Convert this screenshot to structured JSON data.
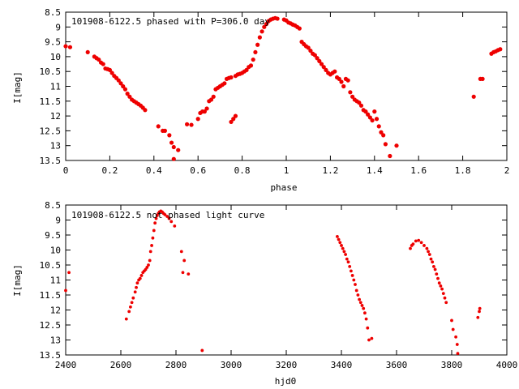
{
  "chart_data": [
    {
      "type": "scatter",
      "title": "101908-6122.5 phased with P=306.0 day",
      "xlabel": "phase",
      "ylabel": "I[mag]",
      "xlim": [
        0,
        2
      ],
      "ylim": [
        13.5,
        8.5
      ],
      "y_inverted": true,
      "xticks": [
        0,
        0.2,
        0.4,
        0.6,
        0.8,
        1,
        1.2,
        1.4,
        1.6,
        1.8,
        2
      ],
      "xtick_labels": [
        "0",
        "0.2",
        "0.4",
        "0.6",
        "0.8",
        "1",
        "1.2",
        "1.4",
        "1.6",
        "1.8",
        "2"
      ],
      "yticks": [
        8.5,
        9,
        9.5,
        10,
        10.5,
        11,
        11.5,
        12,
        12.5,
        13,
        13.5
      ],
      "ytick_labels": [
        "8.5",
        "9",
        "9.5",
        "10",
        "10.5",
        "11",
        "11.5",
        "12",
        "12.5",
        "13",
        "13.5"
      ],
      "grid": false,
      "marker_color": "#ee0000",
      "points": [
        [
          0.0,
          9.65
        ],
        [
          0.02,
          9.68
        ],
        [
          0.1,
          9.85
        ],
        [
          0.13,
          10.0
        ],
        [
          0.14,
          10.05
        ],
        [
          0.15,
          10.1
        ],
        [
          0.16,
          10.2
        ],
        [
          0.17,
          10.25
        ],
        [
          0.18,
          10.4
        ],
        [
          0.19,
          10.42
        ],
        [
          0.2,
          10.45
        ],
        [
          0.21,
          10.55
        ],
        [
          0.22,
          10.65
        ],
        [
          0.23,
          10.72
        ],
        [
          0.24,
          10.8
        ],
        [
          0.25,
          10.9
        ],
        [
          0.26,
          11.0
        ],
        [
          0.27,
          11.1
        ],
        [
          0.28,
          11.25
        ],
        [
          0.29,
          11.35
        ],
        [
          0.3,
          11.45
        ],
        [
          0.31,
          11.5
        ],
        [
          0.32,
          11.55
        ],
        [
          0.33,
          11.6
        ],
        [
          0.34,
          11.65
        ],
        [
          0.35,
          11.72
        ],
        [
          0.36,
          11.8
        ],
        [
          0.42,
          12.35
        ],
        [
          0.44,
          12.5
        ],
        [
          0.45,
          12.5
        ],
        [
          0.47,
          12.65
        ],
        [
          0.48,
          12.9
        ],
        [
          0.49,
          13.05
        ],
        [
          0.49,
          13.45
        ],
        [
          0.51,
          13.15
        ],
        [
          0.55,
          12.28
        ],
        [
          0.57,
          12.3
        ],
        [
          0.6,
          12.1
        ],
        [
          0.61,
          11.9
        ],
        [
          0.62,
          11.85
        ],
        [
          0.63,
          11.85
        ],
        [
          0.64,
          11.75
        ],
        [
          0.65,
          11.5
        ],
        [
          0.66,
          11.45
        ],
        [
          0.67,
          11.35
        ],
        [
          0.68,
          11.1
        ],
        [
          0.69,
          11.05
        ],
        [
          0.7,
          11.0
        ],
        [
          0.71,
          10.95
        ],
        [
          0.72,
          10.9
        ],
        [
          0.73,
          10.75
        ],
        [
          0.74,
          10.72
        ],
        [
          0.75,
          10.7
        ],
        [
          0.75,
          12.2
        ],
        [
          0.76,
          12.1
        ],
        [
          0.77,
          12.0
        ],
        [
          0.77,
          10.65
        ],
        [
          0.78,
          10.6
        ],
        [
          0.79,
          10.58
        ],
        [
          0.8,
          10.55
        ],
        [
          0.81,
          10.5
        ],
        [
          0.82,
          10.45
        ],
        [
          0.83,
          10.35
        ],
        [
          0.84,
          10.3
        ],
        [
          0.85,
          10.1
        ],
        [
          0.86,
          9.85
        ],
        [
          0.87,
          9.6
        ],
        [
          0.88,
          9.35
        ],
        [
          0.89,
          9.15
        ],
        [
          0.9,
          9.0
        ],
        [
          0.91,
          8.9
        ],
        [
          0.92,
          8.8
        ],
        [
          0.93,
          8.75
        ],
        [
          0.94,
          8.72
        ],
        [
          0.95,
          8.7
        ],
        [
          0.96,
          8.72
        ],
        [
          0.99,
          8.75
        ],
        [
          1.0,
          8.78
        ],
        [
          1.01,
          8.85
        ],
        [
          1.02,
          8.88
        ],
        [
          1.03,
          8.92
        ],
        [
          1.04,
          8.95
        ],
        [
          1.05,
          9.0
        ],
        [
          1.06,
          9.05
        ],
        [
          1.07,
          9.5
        ],
        [
          1.08,
          9.58
        ],
        [
          1.09,
          9.65
        ],
        [
          1.1,
          9.7
        ],
        [
          1.11,
          9.8
        ],
        [
          1.12,
          9.9
        ],
        [
          1.13,
          9.95
        ],
        [
          1.14,
          10.05
        ],
        [
          1.15,
          10.15
        ],
        [
          1.16,
          10.25
        ],
        [
          1.17,
          10.35
        ],
        [
          1.18,
          10.45
        ],
        [
          1.19,
          10.55
        ],
        [
          1.2,
          10.6
        ],
        [
          1.21,
          10.55
        ],
        [
          1.22,
          10.5
        ],
        [
          1.23,
          10.7
        ],
        [
          1.24,
          10.75
        ],
        [
          1.25,
          10.85
        ],
        [
          1.26,
          11.0
        ],
        [
          1.27,
          10.75
        ],
        [
          1.28,
          10.8
        ],
        [
          1.29,
          11.2
        ],
        [
          1.3,
          11.35
        ],
        [
          1.31,
          11.45
        ],
        [
          1.32,
          11.5
        ],
        [
          1.33,
          11.55
        ],
        [
          1.34,
          11.65
        ],
        [
          1.35,
          11.8
        ],
        [
          1.36,
          11.85
        ],
        [
          1.37,
          11.95
        ],
        [
          1.38,
          12.05
        ],
        [
          1.39,
          12.15
        ],
        [
          1.4,
          11.85
        ],
        [
          1.41,
          12.1
        ],
        [
          1.42,
          12.35
        ],
        [
          1.43,
          12.55
        ],
        [
          1.44,
          12.65
        ],
        [
          1.45,
          12.95
        ],
        [
          1.47,
          13.35
        ],
        [
          1.5,
          13.0
        ],
        [
          1.85,
          11.35
        ],
        [
          1.88,
          10.75
        ],
        [
          1.89,
          10.75
        ],
        [
          1.93,
          9.9
        ],
        [
          1.94,
          9.85
        ],
        [
          1.95,
          9.82
        ],
        [
          1.96,
          9.78
        ],
        [
          1.97,
          9.75
        ]
      ]
    },
    {
      "type": "scatter",
      "title": "101908-6122.5 not phased light curve",
      "xlabel": "hjd0",
      "ylabel": "I[mag]",
      "xlim": [
        2400,
        4000
      ],
      "ylim": [
        13.5,
        8.5
      ],
      "y_inverted": true,
      "xticks": [
        2400,
        2600,
        2800,
        3000,
        3200,
        3400,
        3600,
        3800,
        4000
      ],
      "xtick_labels": [
        "2400",
        "2600",
        "2800",
        "3000",
        "3200",
        "3400",
        "3600",
        "3800",
        "4000"
      ],
      "yticks": [
        8.5,
        9,
        9.5,
        10,
        10.5,
        11,
        11.5,
        12,
        12.5,
        13,
        13.5
      ],
      "ytick_labels": [
        "8.5",
        "9",
        "9.5",
        "10",
        "10.5",
        "11",
        "11.5",
        "12",
        "12.5",
        "13",
        "13.5"
      ],
      "grid": false,
      "marker_color": "#ee0000",
      "points": [
        [
          2400,
          11.35
        ],
        [
          2412,
          10.75
        ],
        [
          2620,
          12.3
        ],
        [
          2630,
          12.05
        ],
        [
          2635,
          11.9
        ],
        [
          2640,
          11.75
        ],
        [
          2645,
          11.6
        ],
        [
          2652,
          11.4
        ],
        [
          2656,
          11.25
        ],
        [
          2660,
          11.1
        ],
        [
          2665,
          11.0
        ],
        [
          2670,
          10.95
        ],
        [
          2675,
          10.85
        ],
        [
          2680,
          10.75
        ],
        [
          2685,
          10.7
        ],
        [
          2690,
          10.65
        ],
        [
          2695,
          10.58
        ],
        [
          2700,
          10.5
        ],
        [
          2705,
          10.35
        ],
        [
          2708,
          10.05
        ],
        [
          2712,
          9.85
        ],
        [
          2716,
          9.6
        ],
        [
          2720,
          9.35
        ],
        [
          2724,
          9.1
        ],
        [
          2728,
          8.95
        ],
        [
          2732,
          8.85
        ],
        [
          2736,
          8.78
        ],
        [
          2740,
          8.73
        ],
        [
          2745,
          8.7
        ],
        [
          2750,
          8.73
        ],
        [
          2755,
          8.78
        ],
        [
          2760,
          8.82
        ],
        [
          2768,
          8.88
        ],
        [
          2775,
          8.95
        ],
        [
          2783,
          9.05
        ],
        [
          2795,
          9.2
        ],
        [
          2820,
          10.05
        ],
        [
          2825,
          10.75
        ],
        [
          2830,
          10.35
        ],
        [
          2845,
          10.8
        ],
        [
          2895,
          13.35
        ],
        [
          3385,
          9.55
        ],
        [
          3390,
          9.65
        ],
        [
          3395,
          9.75
        ],
        [
          3400,
          9.85
        ],
        [
          3405,
          9.95
        ],
        [
          3410,
          10.05
        ],
        [
          3415,
          10.15
        ],
        [
          3420,
          10.3
        ],
        [
          3425,
          10.4
        ],
        [
          3430,
          10.55
        ],
        [
          3435,
          10.7
        ],
        [
          3440,
          10.85
        ],
        [
          3445,
          11.0
        ],
        [
          3450,
          11.15
        ],
        [
          3455,
          11.35
        ],
        [
          3460,
          11.5
        ],
        [
          3465,
          11.65
        ],
        [
          3470,
          11.75
        ],
        [
          3475,
          11.85
        ],
        [
          3480,
          11.95
        ],
        [
          3485,
          12.1
        ],
        [
          3490,
          12.3
        ],
        [
          3495,
          12.6
        ],
        [
          3500,
          13.0
        ],
        [
          3510,
          12.95
        ],
        [
          3650,
          9.95
        ],
        [
          3655,
          9.85
        ],
        [
          3660,
          9.8
        ],
        [
          3670,
          9.7
        ],
        [
          3680,
          9.68
        ],
        [
          3690,
          9.75
        ],
        [
          3700,
          9.85
        ],
        [
          3710,
          9.95
        ],
        [
          3715,
          10.05
        ],
        [
          3720,
          10.15
        ],
        [
          3725,
          10.3
        ],
        [
          3730,
          10.4
        ],
        [
          3735,
          10.55
        ],
        [
          3740,
          10.65
        ],
        [
          3745,
          10.8
        ],
        [
          3750,
          10.95
        ],
        [
          3755,
          11.1
        ],
        [
          3760,
          11.2
        ],
        [
          3765,
          11.3
        ],
        [
          3770,
          11.45
        ],
        [
          3775,
          11.6
        ],
        [
          3780,
          11.75
        ],
        [
          3800,
          12.35
        ],
        [
          3805,
          12.65
        ],
        [
          3815,
          12.9
        ],
        [
          3820,
          13.15
        ],
        [
          3822,
          13.45
        ],
        [
          3895,
          12.25
        ],
        [
          3900,
          12.05
        ],
        [
          3902,
          11.95
        ]
      ]
    }
  ]
}
